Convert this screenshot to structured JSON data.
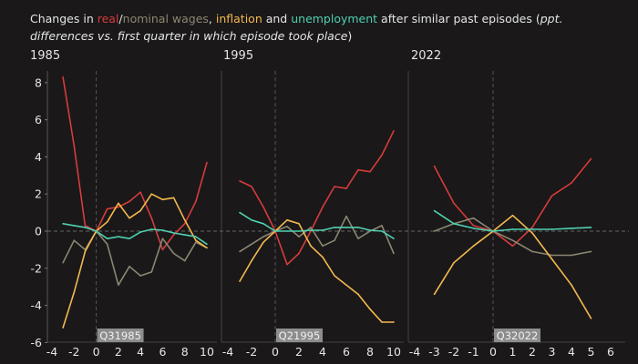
{
  "title": {
    "prefix": "Changes in ",
    "real": "real",
    "slash": "/",
    "nominal": "nominal wages",
    "comma": ", ",
    "inflation": "inflation",
    "and": " and ",
    "unemployment": "unemployment",
    "rest": " after similar past episodes (",
    "italic": "ppt. differences vs. first quarter in which episode took place",
    "close": ")"
  },
  "colors": {
    "real": "#d63c3c",
    "nominal": "#8c8772",
    "inflation": "#f4b94e",
    "unemployment": "#4fd0b0",
    "background": "#1a1819"
  },
  "chart_data": [
    {
      "type": "line",
      "panel": "1985",
      "marker_label": "Q31985",
      "xlim": [
        -4,
        10
      ],
      "xticks": [
        -4,
        -2,
        0,
        2,
        4,
        6,
        8,
        10
      ],
      "ylim": [
        -6,
        8
      ],
      "yticks": [
        -6,
        -4,
        -2,
        0,
        2,
        4,
        6,
        8
      ],
      "x": [
        -3,
        -2,
        -1,
        0,
        1,
        2,
        3,
        4,
        5,
        6,
        7,
        8,
        9,
        10
      ],
      "series": [
        {
          "name": "real",
          "values": [
            8.3,
            4.6,
            0.3,
            0,
            1.2,
            1.3,
            1.6,
            2.1,
            0.7,
            -1.0,
            -0.2,
            0.4,
            1.6,
            3.7
          ]
        },
        {
          "name": "nominal wages",
          "values": [
            -1.7,
            -0.5,
            -1.0,
            0,
            -0.7,
            -2.9,
            -1.9,
            -2.4,
            -2.2,
            -0.4,
            -1.2,
            -1.6,
            -0.6,
            -0.9
          ]
        },
        {
          "name": "inflation",
          "values": [
            -5.2,
            -3.3,
            -1.1,
            0,
            0.5,
            1.5,
            0.7,
            1.1,
            2.0,
            1.7,
            1.8,
            0.6,
            -0.5,
            -0.9
          ]
        },
        {
          "name": "unemployment",
          "values": [
            0.4,
            0.3,
            0.2,
            0,
            -0.4,
            -0.3,
            -0.4,
            -0.05,
            0.1,
            0.05,
            -0.1,
            -0.2,
            -0.3,
            -0.7
          ]
        }
      ]
    },
    {
      "type": "line",
      "panel": "1995",
      "marker_label": "Q21995",
      "xlim": [
        -4,
        10
      ],
      "xticks": [
        -4,
        -2,
        0,
        2,
        4,
        6,
        8,
        10
      ],
      "ylim": [
        -6,
        8
      ],
      "x": [
        -3,
        -2,
        -1,
        0,
        1,
        2,
        3,
        4,
        5,
        6,
        7,
        8,
        9,
        10
      ],
      "series": [
        {
          "name": "real",
          "values": [
            2.7,
            2.4,
            1.3,
            0,
            -1.8,
            -1.2,
            0,
            1.3,
            2.4,
            2.3,
            3.3,
            3.2,
            4.1,
            5.4
          ]
        },
        {
          "name": "nominal wages",
          "values": [
            -1.1,
            -0.7,
            -0.3,
            0,
            0.25,
            -0.3,
            0.2,
            -0.8,
            -0.5,
            0.8,
            -0.4,
            0,
            0.3,
            -1.2
          ]
        },
        {
          "name": "inflation",
          "values": [
            -2.7,
            -1.6,
            -0.6,
            0,
            0.6,
            0.4,
            -0.8,
            -1.4,
            -2.4,
            -2.9,
            -3.4,
            -4.2,
            -4.9,
            -4.9
          ]
        },
        {
          "name": "unemployment",
          "values": [
            1.0,
            0.6,
            0.4,
            0,
            0,
            0,
            0.05,
            0.05,
            0.2,
            0.2,
            0.2,
            0.05,
            0,
            -0.4
          ]
        }
      ]
    },
    {
      "type": "line",
      "panel": "2022",
      "marker_label": "Q32022",
      "xlim": [
        -4,
        6
      ],
      "xticks": [
        -4,
        -3,
        -2,
        -1,
        0,
        1,
        2,
        3,
        4,
        5,
        6
      ],
      "ylim": [
        -6,
        8
      ],
      "x": [
        -3,
        -2,
        -1,
        0,
        1,
        2,
        3,
        4,
        5
      ],
      "series": [
        {
          "name": "real",
          "values": [
            3.5,
            1.5,
            0.3,
            0,
            -0.8,
            0.2,
            1.9,
            2.6,
            3.9
          ]
        },
        {
          "name": "nominal wages",
          "values": [
            0,
            0.4,
            0.7,
            0,
            -0.5,
            -1.1,
            -1.3,
            -1.3,
            -1.1
          ]
        },
        {
          "name": "inflation",
          "values": [
            -3.4,
            -1.7,
            -0.8,
            0,
            0.85,
            -0.1,
            -1.5,
            -2.9,
            -4.7
          ]
        },
        {
          "name": "unemployment",
          "values": [
            1.1,
            0.4,
            0.15,
            0,
            0.1,
            0.1,
            0.1,
            0.15,
            0.2
          ]
        }
      ]
    }
  ]
}
